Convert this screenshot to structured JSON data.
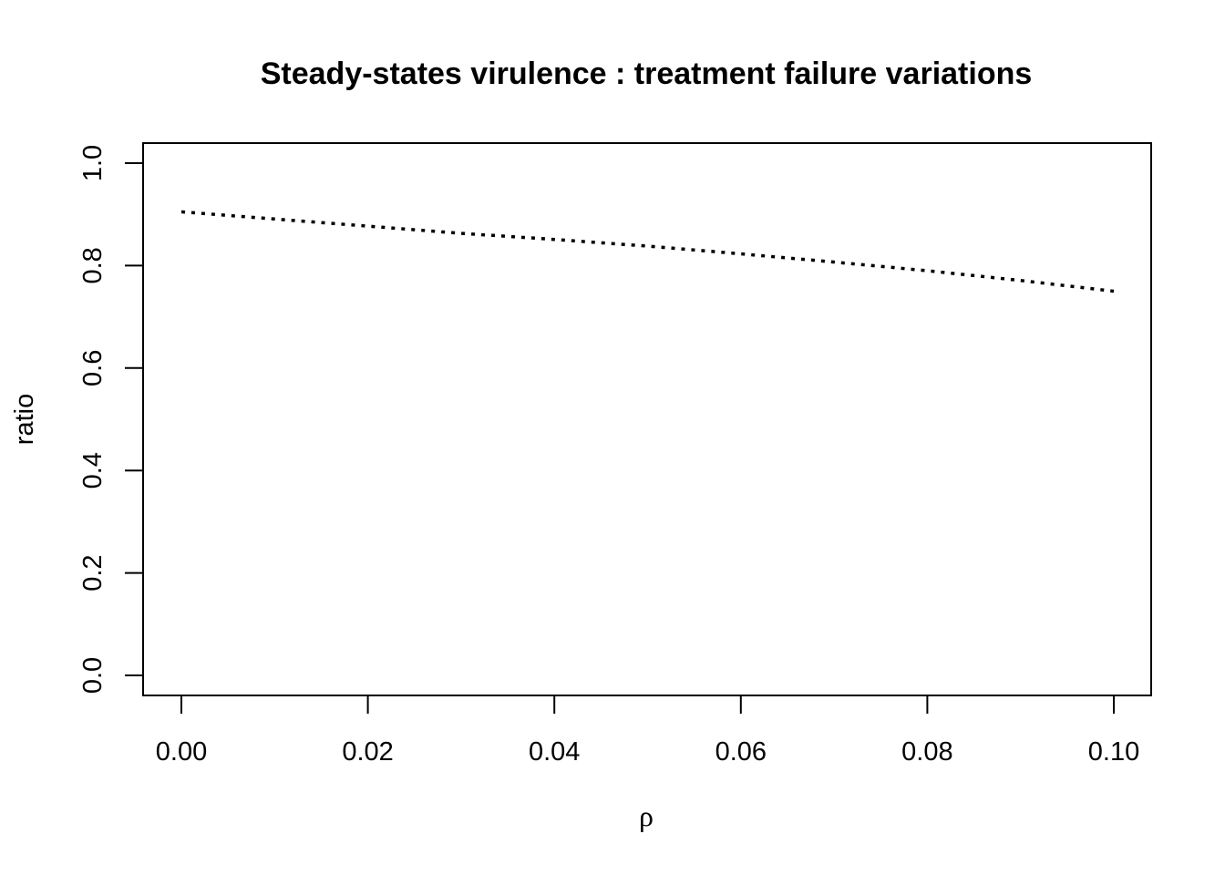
{
  "chart_data": {
    "type": "line",
    "title": "Steady-states virulence : treatment failure variations",
    "xlabel": "ρ",
    "ylabel": "ratio",
    "xlim": [
      0.0,
      0.1
    ],
    "ylim": [
      0.0,
      1.0
    ],
    "x_ticks": [
      0.0,
      0.02,
      0.04,
      0.06,
      0.08,
      0.1
    ],
    "x_tick_labels": [
      "0.00",
      "0.02",
      "0.04",
      "0.06",
      "0.08",
      "0.10"
    ],
    "y_ticks": [
      0.0,
      0.2,
      0.4,
      0.6,
      0.8,
      1.0
    ],
    "y_tick_labels": [
      "0.0",
      "0.2",
      "0.4",
      "0.6",
      "0.8",
      "1.0"
    ],
    "grid": false,
    "legend": "none",
    "line_style": "dotted",
    "line_color": "#000000",
    "series": [
      {
        "x": [
          0.0,
          0.01,
          0.02,
          0.03,
          0.04,
          0.05,
          0.06,
          0.07,
          0.08,
          0.09,
          0.1
        ],
        "values": [
          0.905,
          0.891,
          0.877,
          0.863,
          0.851,
          0.838,
          0.823,
          0.807,
          0.79,
          0.771,
          0.75
        ]
      }
    ]
  }
}
